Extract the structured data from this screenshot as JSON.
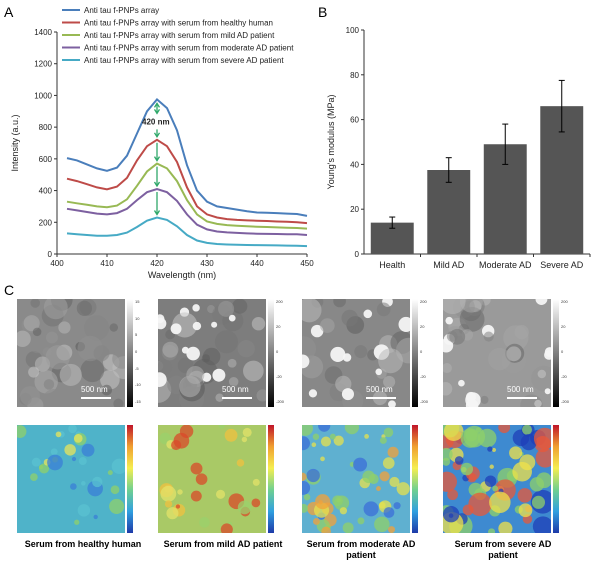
{
  "panels": {
    "a": "A",
    "b": "B",
    "c": "C"
  },
  "chart_data": [
    {
      "type": "line",
      "xlabel": "Wavelength (nm)",
      "ylabel": "Intensity (a.u.)",
      "xlim": [
        400,
        450
      ],
      "ylim": [
        0,
        1400
      ],
      "xticks": [
        400,
        410,
        420,
        430,
        440,
        450
      ],
      "yticks": [
        0,
        200,
        400,
        600,
        800,
        1000,
        1200,
        1400
      ],
      "legend_position": "top-left",
      "annotation": "420 nm",
      "x": [
        402,
        404,
        406,
        408,
        410,
        412,
        414,
        416,
        418,
        420,
        422,
        424,
        426,
        428,
        430,
        432,
        434,
        436,
        438,
        440,
        442,
        444,
        446,
        448,
        450
      ],
      "series": [
        {
          "name": "Anti tau f-PNPs array",
          "color": "#4a7ebb",
          "values": [
            605,
            590,
            565,
            540,
            525,
            545,
            620,
            760,
            900,
            975,
            920,
            780,
            560,
            400,
            330,
            300,
            290,
            280,
            270,
            262,
            260,
            258,
            255,
            252,
            240
          ]
        },
        {
          "name": "Anti tau f-PNPs array with serum from healthy human",
          "color": "#be4b48",
          "values": [
            475,
            460,
            440,
            420,
            408,
            425,
            480,
            590,
            680,
            720,
            680,
            580,
            420,
            300,
            250,
            230,
            220,
            215,
            212,
            210,
            208,
            205,
            203,
            200,
            195
          ]
        },
        {
          "name": "Anti tau f-PNPs array with serum from mild AD patient",
          "color": "#98b954",
          "values": [
            330,
            320,
            310,
            300,
            295,
            305,
            345,
            430,
            520,
            570,
            540,
            460,
            340,
            250,
            205,
            190,
            182,
            178,
            175,
            172,
            170,
            168,
            166,
            164,
            160
          ]
        },
        {
          "name": "Anti tau f-PNPs array with serum from moderate AD patient",
          "color": "#7d60a0",
          "values": [
            285,
            275,
            265,
            255,
            250,
            258,
            285,
            340,
            390,
            410,
            390,
            335,
            250,
            185,
            155,
            142,
            136,
            133,
            130,
            128,
            127,
            126,
            125,
            124,
            120
          ]
        },
        {
          "name": "Anti tau f-PNPs array with serum from severe AD patient",
          "color": "#46aac5",
          "values": [
            130,
            125,
            120,
            115,
            115,
            120,
            135,
            170,
            210,
            230,
            215,
            175,
            120,
            85,
            70,
            63,
            60,
            58,
            57,
            56,
            55,
            54,
            53,
            52,
            50
          ]
        }
      ]
    },
    {
      "type": "bar",
      "categories": [
        "Health",
        "Mild AD",
        "Moderate AD",
        "Severe AD"
      ],
      "values": [
        14,
        37.5,
        49,
        66
      ],
      "errors": [
        2.5,
        5.5,
        9,
        11.5
      ],
      "ylabel": "Young's modulus (MPa)",
      "ylim": [
        0,
        100
      ],
      "yticks": [
        0,
        20,
        40,
        60,
        80,
        100
      ],
      "bar_color": "#555555"
    }
  ],
  "afm_images": [
    {
      "scale": "500 nm",
      "ticks": [
        "15",
        "10",
        "5",
        "0",
        "-5",
        "-10",
        "-15"
      ]
    },
    {
      "scale": "500 nm",
      "ticks": [
        "200",
        "20",
        "0",
        "-20",
        "-200"
      ]
    },
    {
      "scale": "500 nm",
      "ticks": [
        "200",
        "20",
        "0",
        "-20",
        "-200"
      ]
    },
    {
      "scale": "500 nm",
      "ticks": [
        "200",
        "20",
        "0",
        "-20",
        "-200"
      ]
    }
  ],
  "captions": [
    "Serum from healthy human",
    "Serum from mild AD patient",
    "Serum from moderate AD patient",
    "Serum from severe AD patient"
  ]
}
